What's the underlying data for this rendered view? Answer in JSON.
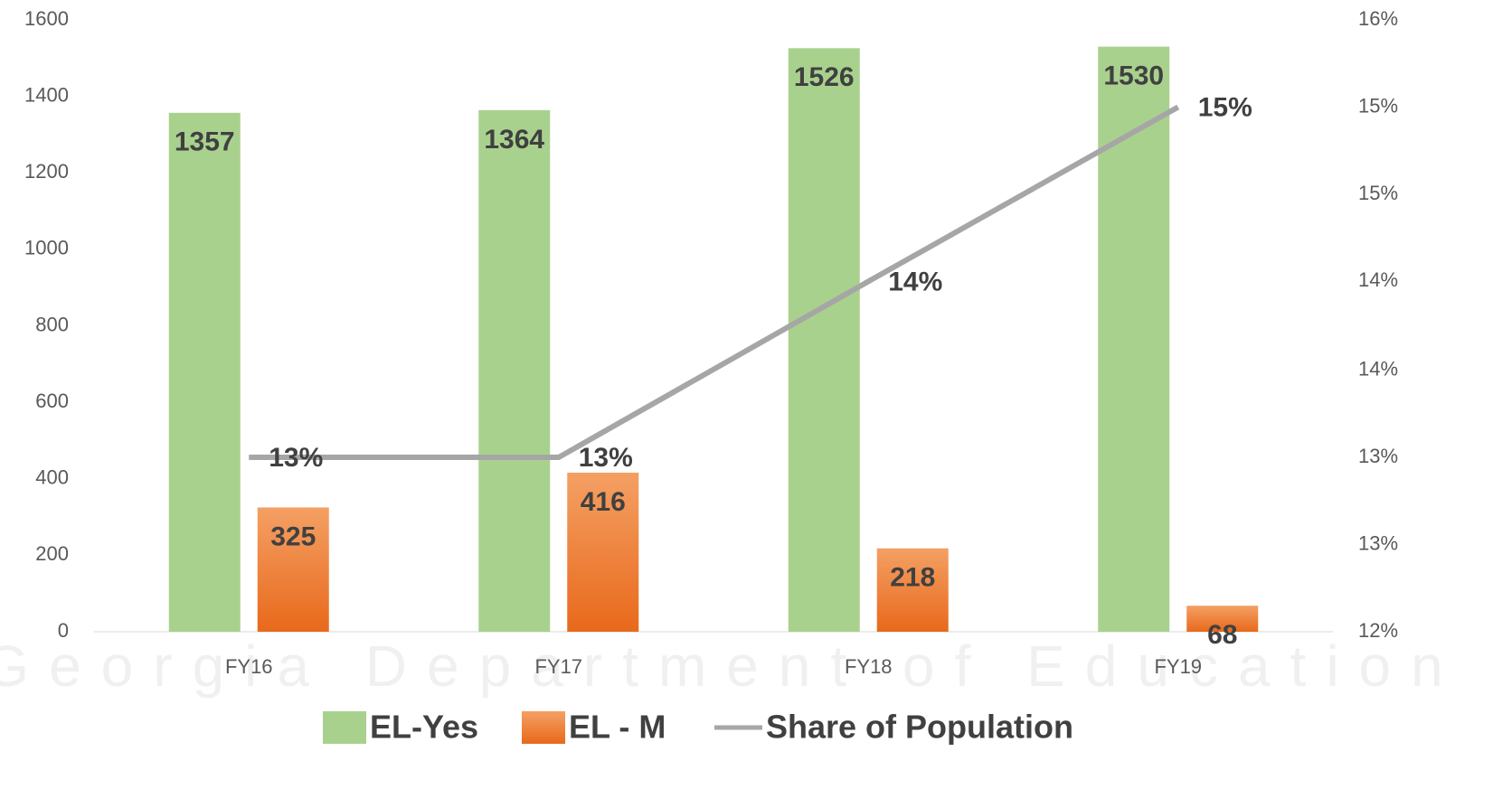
{
  "chart_data": {
    "type": "bar",
    "watermark": "Georgia Department of Education",
    "categories": [
      "FY16",
      "FY17",
      "FY18",
      "FY19"
    ],
    "series": [
      {
        "name": "EL-Yes",
        "type": "bar",
        "color": "#a9d18e",
        "values": [
          1357,
          1364,
          1526,
          1530
        ]
      },
      {
        "name": "EL - M",
        "type": "bar",
        "color": "#ed7d31",
        "values": [
          325,
          416,
          218,
          68
        ]
      },
      {
        "name": "Share of Population",
        "type": "line",
        "axis": "y2",
        "color": "#a6a6a6",
        "values": [
          13.14,
          13.14,
          14.29,
          15.43
        ],
        "value_labels": [
          "13%",
          "13%",
          "14%",
          "15%"
        ]
      }
    ],
    "ylim": [
      0,
      1600
    ],
    "yticks": [
      0,
      200,
      400,
      600,
      800,
      1000,
      1200,
      1400,
      1600
    ],
    "y2lim": [
      12,
      16
    ],
    "y2ticks": [
      {
        "value": 12,
        "label": "12%"
      },
      {
        "value": 12.57,
        "label": "13%"
      },
      {
        "value": 13.14,
        "label": "13%"
      },
      {
        "value": 13.71,
        "label": "14%"
      },
      {
        "value": 14.29,
        "label": "14%"
      },
      {
        "value": 14.86,
        "label": "15%"
      },
      {
        "value": 15.43,
        "label": "15%"
      },
      {
        "value": 16,
        "label": "16%"
      }
    ],
    "grid": false,
    "legend": "bottom"
  }
}
